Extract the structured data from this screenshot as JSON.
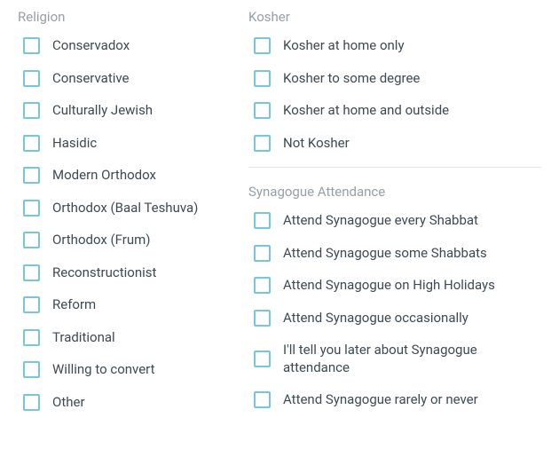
{
  "colors": {
    "heading": "#97a0a6",
    "text": "#3e4a52",
    "checkbox_border": "#76c7d8",
    "divider": "#e4e7e9",
    "background": "#ffffff"
  },
  "sections": {
    "religion": {
      "title": "Religion",
      "options": [
        "Conservadox",
        "Conservative",
        "Culturally Jewish",
        "Hasidic",
        "Modern Orthodox",
        "Orthodox (Baal Teshuva)",
        "Orthodox (Frum)",
        "Reconstructionist",
        "Reform",
        "Traditional",
        "Willing to convert",
        "Other"
      ]
    },
    "kosher": {
      "title": "Kosher",
      "options": [
        "Kosher at home only",
        "Kosher to some degree",
        "Kosher at home and outside",
        "Not Kosher"
      ]
    },
    "synagogue": {
      "title": "Synagogue Attendance",
      "options": [
        "Attend Synagogue every Shabbat",
        "Attend Synagogue some Shabbats",
        "Attend Synagogue on High Holidays",
        "Attend Synagogue occasionally",
        "I'll tell you later about Synagogue attendance",
        "Attend Synagogue rarely or never"
      ]
    }
  }
}
